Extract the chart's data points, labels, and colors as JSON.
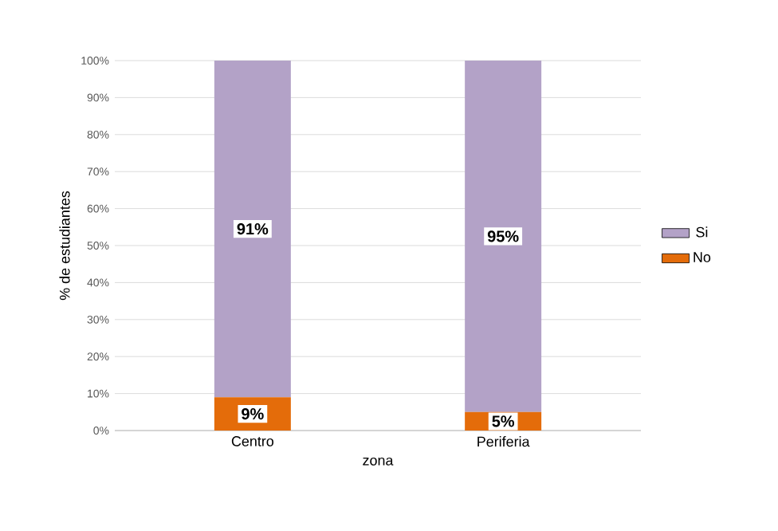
{
  "chart_data": {
    "type": "bar",
    "stacked": true,
    "xlabel": "zona",
    "ylabel": "% de estudiantes",
    "categories": [
      "Centro",
      "Periferia"
    ],
    "series": [
      {
        "name": "No",
        "color": "#e46c0a",
        "values": [
          9,
          5
        ],
        "value_labels": [
          "9%",
          "5%"
        ]
      },
      {
        "name": "Si",
        "color": "#b3a2c7",
        "values": [
          91,
          95
        ],
        "value_labels": [
          "91%",
          "95%"
        ]
      }
    ],
    "ylim": [
      0,
      100
    ],
    "yticks": [
      {
        "value": 0,
        "label": "0%"
      },
      {
        "value": 10,
        "label": "10%"
      },
      {
        "value": 20,
        "label": "20%"
      },
      {
        "value": 30,
        "label": "30%"
      },
      {
        "value": 40,
        "label": "40%"
      },
      {
        "value": 50,
        "label": "50%"
      },
      {
        "value": 60,
        "label": "60%"
      },
      {
        "value": 70,
        "label": "70%"
      },
      {
        "value": 80,
        "label": "80%"
      },
      {
        "value": 90,
        "label": "90%"
      },
      {
        "value": 100,
        "label": "100%"
      }
    ],
    "grid": "y",
    "legend": "right"
  }
}
